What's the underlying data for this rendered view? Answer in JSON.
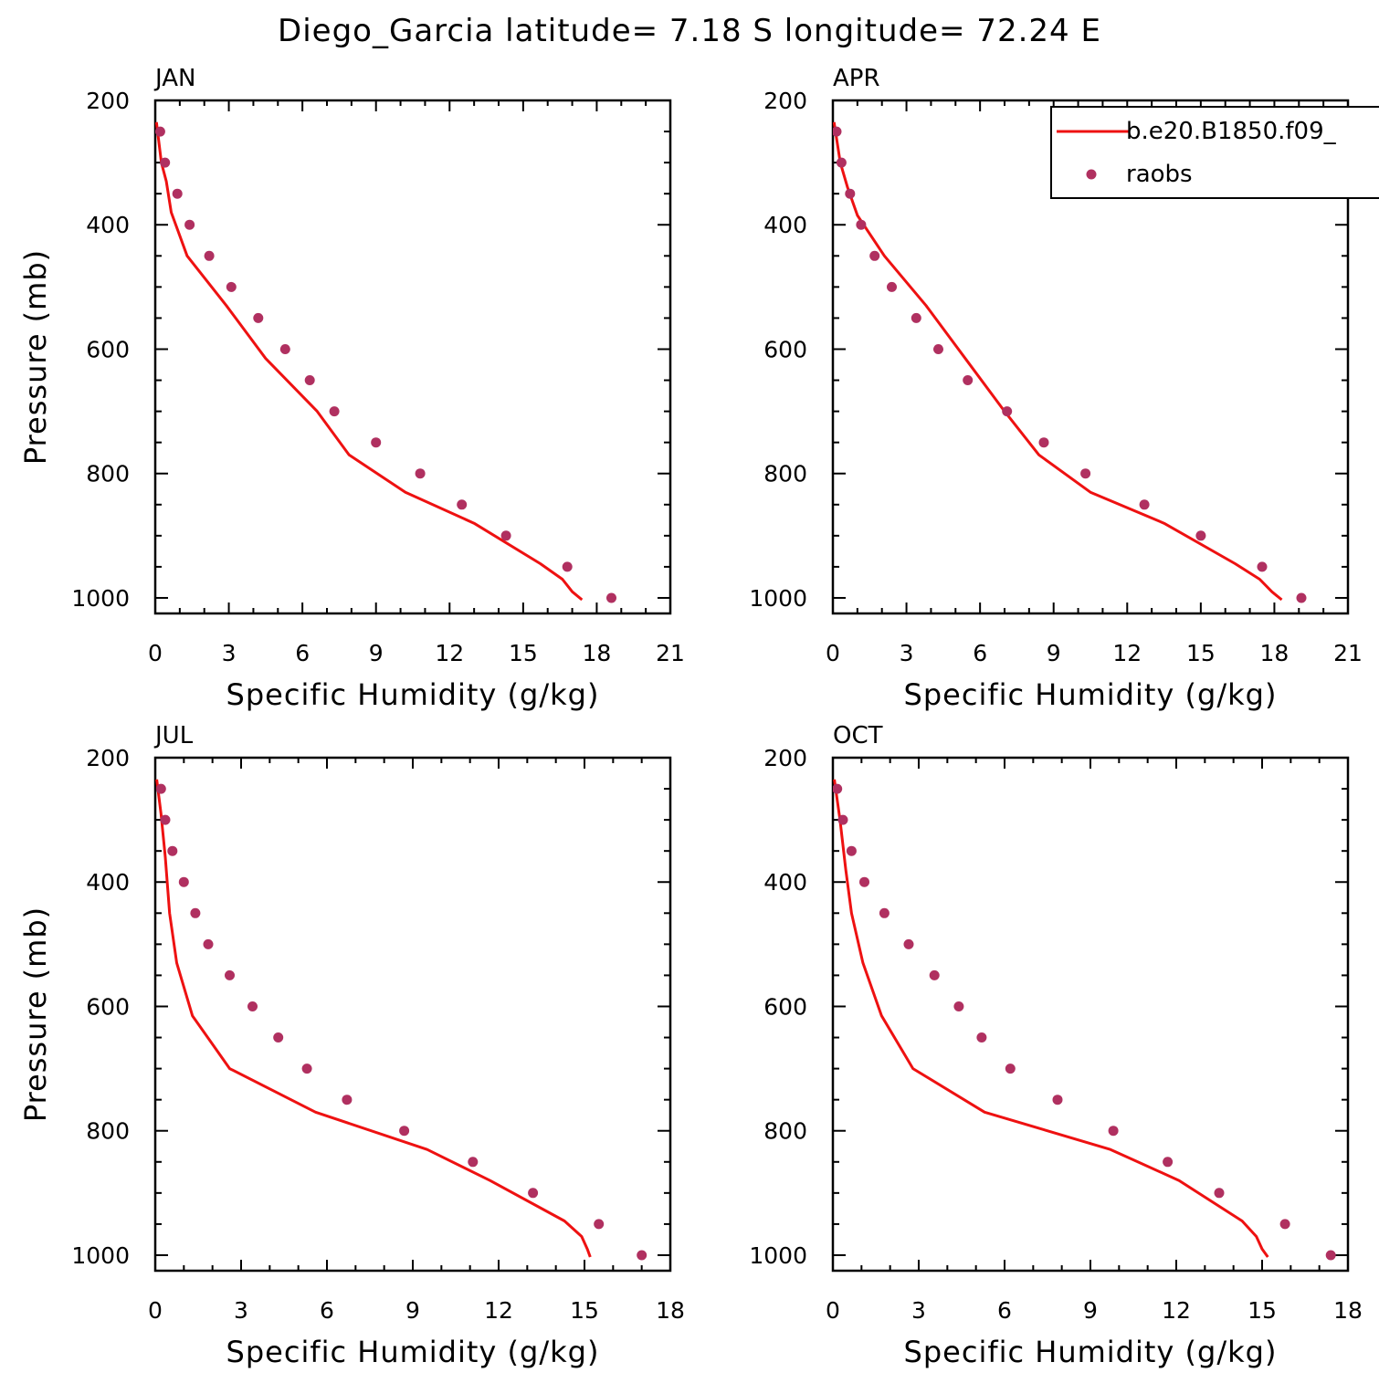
{
  "title": "Diego_Garcia  latitude= 7.18 S longitude= 72.24 E",
  "colors": {
    "model": "#ee1111",
    "obs": "#b03060",
    "axis": "#000000",
    "background": "#ffffff"
  },
  "legend": {
    "placement": "top-right of APR panel (clipped at figure edge)",
    "entries": [
      {
        "label": "b.e20.B1850.f09_",
        "marker": "line",
        "color": "#ee1111"
      },
      {
        "label": "raobs",
        "marker": "dot",
        "color": "#b03060"
      }
    ]
  },
  "chart_data": [
    {
      "type": "line",
      "panel": "JAN",
      "xlabel": "Specific Humidity (g/kg)",
      "ylabel": "Pressure (mb)",
      "xlim": [
        0,
        21
      ],
      "xticks": [
        0,
        3,
        6,
        9,
        12,
        15,
        18,
        21
      ],
      "ylim": [
        1025,
        200
      ],
      "yticks": [
        200,
        400,
        600,
        800,
        1000
      ],
      "series": [
        {
          "name": "b.e20.B1850.f09_",
          "style": "line",
          "color": "#ee1111",
          "points": [
            [
              0.05,
              235
            ],
            [
              0.25,
              300
            ],
            [
              0.45,
              330
            ],
            [
              0.65,
              380
            ],
            [
              1.3,
              450
            ],
            [
              2.9,
              530
            ],
            [
              4.5,
              615
            ],
            [
              6.6,
              700
            ],
            [
              7.9,
              770
            ],
            [
              10.2,
              830
            ],
            [
              13.0,
              880
            ],
            [
              15.7,
              945
            ],
            [
              16.6,
              970
            ],
            [
              17.0,
              990
            ],
            [
              17.4,
              1003
            ]
          ]
        },
        {
          "name": "raobs",
          "style": "dots",
          "color": "#b03060",
          "points": [
            [
              0.2,
              250
            ],
            [
              0.4,
              300
            ],
            [
              0.9,
              350
            ],
            [
              1.4,
              400
            ],
            [
              2.2,
              450
            ],
            [
              3.1,
              500
            ],
            [
              4.2,
              550
            ],
            [
              5.3,
              600
            ],
            [
              6.3,
              650
            ],
            [
              7.3,
              700
            ],
            [
              9.0,
              750
            ],
            [
              10.8,
              800
            ],
            [
              12.5,
              850
            ],
            [
              14.3,
              900
            ],
            [
              16.8,
              950
            ],
            [
              18.6,
              1000
            ]
          ]
        }
      ]
    },
    {
      "type": "line",
      "panel": "APR",
      "xlabel": "Specific Humidity (g/kg)",
      "ylabel": "",
      "xlim": [
        0,
        21
      ],
      "xticks": [
        0,
        3,
        6,
        9,
        12,
        15,
        18,
        21
      ],
      "ylim": [
        1025,
        200
      ],
      "yticks": [
        200,
        400,
        600,
        800,
        1000
      ],
      "series": [
        {
          "name": "b.e20.B1850.f09_",
          "style": "line",
          "color": "#ee1111",
          "points": [
            [
              0.05,
              235
            ],
            [
              0.3,
              300
            ],
            [
              0.6,
              340
            ],
            [
              1.0,
              385
            ],
            [
              2.1,
              450
            ],
            [
              3.8,
              530
            ],
            [
              5.4,
              615
            ],
            [
              7.0,
              700
            ],
            [
              8.4,
              770
            ],
            [
              10.5,
              830
            ],
            [
              13.5,
              880
            ],
            [
              16.4,
              945
            ],
            [
              17.4,
              970
            ],
            [
              17.9,
              990
            ],
            [
              18.3,
              1003
            ]
          ]
        },
        {
          "name": "raobs",
          "style": "dots",
          "color": "#b03060",
          "points": [
            [
              0.15,
              250
            ],
            [
              0.35,
              300
            ],
            [
              0.7,
              350
            ],
            [
              1.15,
              400
            ],
            [
              1.7,
              450
            ],
            [
              2.4,
              500
            ],
            [
              3.4,
              550
            ],
            [
              4.3,
              600
            ],
            [
              5.5,
              650
            ],
            [
              7.1,
              700
            ],
            [
              8.6,
              750
            ],
            [
              10.3,
              800
            ],
            [
              12.7,
              850
            ],
            [
              15.0,
              900
            ],
            [
              17.5,
              950
            ],
            [
              19.1,
              1000
            ]
          ]
        }
      ]
    },
    {
      "type": "line",
      "panel": "JUL",
      "xlabel": "Specific Humidity (g/kg)",
      "ylabel": "Pressure (mb)",
      "xlim": [
        0,
        18
      ],
      "xticks": [
        0,
        3,
        6,
        9,
        12,
        15,
        18
      ],
      "ylim": [
        1025,
        200
      ],
      "yticks": [
        200,
        400,
        600,
        800,
        1000
      ],
      "series": [
        {
          "name": "b.e20.B1850.f09_",
          "style": "line",
          "color": "#ee1111",
          "points": [
            [
              0.05,
              235
            ],
            [
              0.2,
              290
            ],
            [
              0.35,
              360
            ],
            [
              0.5,
              450
            ],
            [
              0.75,
              530
            ],
            [
              1.3,
              615
            ],
            [
              2.6,
              700
            ],
            [
              5.6,
              770
            ],
            [
              9.5,
              830
            ],
            [
              11.7,
              880
            ],
            [
              14.3,
              945
            ],
            [
              14.9,
              970
            ],
            [
              15.1,
              990
            ],
            [
              15.2,
              1003
            ]
          ]
        },
        {
          "name": "raobs",
          "style": "dots",
          "color": "#b03060",
          "points": [
            [
              0.2,
              250
            ],
            [
              0.35,
              300
            ],
            [
              0.6,
              350
            ],
            [
              1.0,
              400
            ],
            [
              1.4,
              450
            ],
            [
              1.85,
              500
            ],
            [
              2.6,
              550
            ],
            [
              3.4,
              600
            ],
            [
              4.3,
              650
            ],
            [
              5.3,
              700
            ],
            [
              6.7,
              750
            ],
            [
              8.7,
              800
            ],
            [
              11.1,
              850
            ],
            [
              13.2,
              900
            ],
            [
              15.5,
              950
            ],
            [
              17.0,
              1000
            ]
          ]
        }
      ]
    },
    {
      "type": "line",
      "panel": "OCT",
      "xlabel": "Specific Humidity (g/kg)",
      "ylabel": "",
      "xlim": [
        0,
        18
      ],
      "xticks": [
        0,
        3,
        6,
        9,
        12,
        15,
        18
      ],
      "ylim": [
        1025,
        200
      ],
      "yticks": [
        200,
        400,
        600,
        800,
        1000
      ],
      "series": [
        {
          "name": "b.e20.B1850.f09_",
          "style": "line",
          "color": "#ee1111",
          "points": [
            [
              0.05,
              235
            ],
            [
              0.25,
              300
            ],
            [
              0.45,
              380
            ],
            [
              0.65,
              450
            ],
            [
              1.05,
              530
            ],
            [
              1.7,
              615
            ],
            [
              2.8,
              700
            ],
            [
              5.3,
              770
            ],
            [
              9.7,
              830
            ],
            [
              12.1,
              880
            ],
            [
              14.3,
              945
            ],
            [
              14.8,
              970
            ],
            [
              15.0,
              990
            ],
            [
              15.2,
              1003
            ]
          ]
        },
        {
          "name": "raobs",
          "style": "dots",
          "color": "#b03060",
          "points": [
            [
              0.15,
              250
            ],
            [
              0.35,
              300
            ],
            [
              0.65,
              350
            ],
            [
              1.1,
              400
            ],
            [
              1.8,
              450
            ],
            [
              2.65,
              500
            ],
            [
              3.55,
              550
            ],
            [
              4.4,
              600
            ],
            [
              5.2,
              650
            ],
            [
              6.2,
              700
            ],
            [
              7.85,
              750
            ],
            [
              9.8,
              800
            ],
            [
              11.7,
              850
            ],
            [
              13.5,
              900
            ],
            [
              15.8,
              950
            ],
            [
              17.4,
              1000
            ]
          ]
        }
      ]
    }
  ]
}
